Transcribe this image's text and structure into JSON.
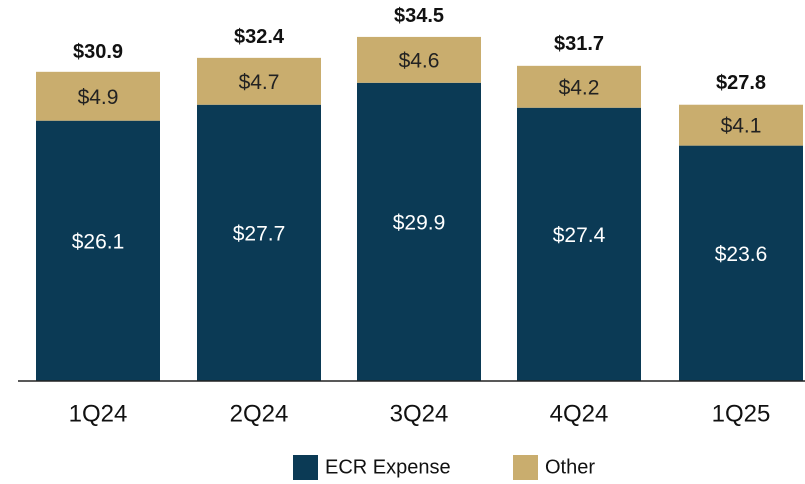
{
  "chart_data": {
    "type": "stacked-bar",
    "categories": [
      "1Q24",
      "2Q24",
      "3Q24",
      "4Q24",
      "1Q25"
    ],
    "series": [
      {
        "name": "ECR Expense",
        "color": "#0b3a55",
        "values": [
          26.1,
          27.7,
          29.9,
          27.4,
          23.6
        ],
        "value_labels": [
          "$26.1",
          "$27.7",
          "$29.9",
          "$27.4",
          "$23.6"
        ]
      },
      {
        "name": "Other",
        "color": "#c9ad6e",
        "values": [
          4.9,
          4.7,
          4.6,
          4.2,
          4.1
        ],
        "value_labels": [
          "$4.9",
          "$4.7",
          "$4.6",
          "$4.2",
          "$4.1"
        ]
      }
    ],
    "totals": [
      30.9,
      32.4,
      34.5,
      31.7,
      27.8
    ],
    "total_labels": [
      "$30.9",
      "$32.4",
      "$34.5",
      "$31.7",
      "$27.8"
    ],
    "ylim": [
      0,
      38
    ]
  }
}
